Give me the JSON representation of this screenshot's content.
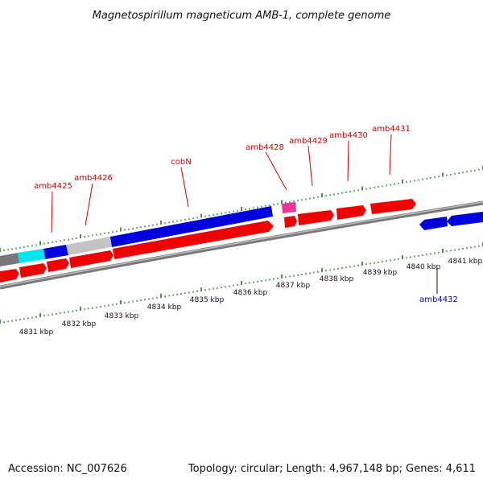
{
  "title": "Magnetospirillum magneticum AMB-1, complete genome",
  "footer": {
    "accession": "Accession: NC_007626",
    "summary": "Topology: circular; Length: 4,967,148 bp; Genes: 4,611"
  },
  "colors": {
    "forward_gene": "#ee0000",
    "reverse_gene": "#0000cc",
    "label_red": "#cc0000",
    "label_blue": "#0000aa",
    "tick": "#1a7a1a",
    "backbone": "#777777",
    "cyan": "#00e5ee",
    "grey": "#c0c0c0",
    "magenta": "#ee3399"
  },
  "gene_labels": [
    {
      "text": "amb4425",
      "color": "red"
    },
    {
      "text": "amb4426",
      "color": "red"
    },
    {
      "text": "cobN",
      "color": "red"
    },
    {
      "text": "amb4428",
      "color": "red"
    },
    {
      "text": "amb4429",
      "color": "red"
    },
    {
      "text": "amb4430",
      "color": "red"
    },
    {
      "text": "amb4431",
      "color": "red"
    },
    {
      "text": "amb4432",
      "color": "blue"
    }
  ],
  "kbp_labels": [
    "4831 kbp",
    "4832 kbp",
    "4833 kbp",
    "4834 kbp",
    "4835 kbp",
    "4836 kbp",
    "4837 kbp",
    "4838 kbp",
    "4839 kbp",
    "4840 kbp",
    "4841 kbp"
  ]
}
